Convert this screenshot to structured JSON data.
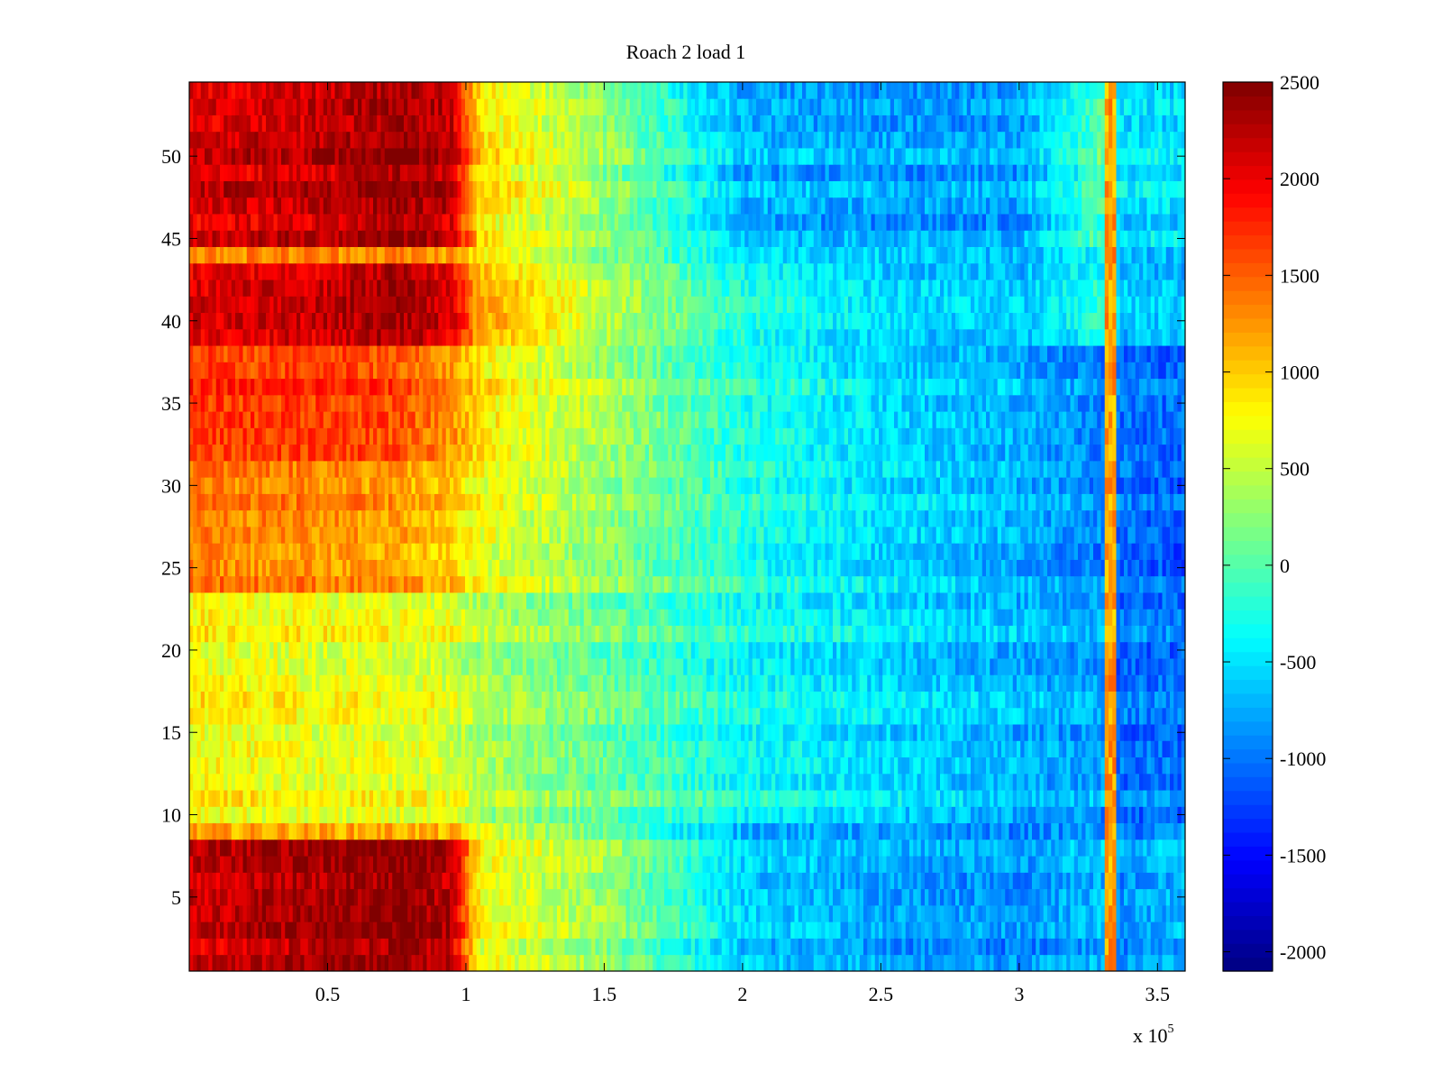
{
  "chart_data": {
    "type": "heatmap",
    "title": "Roach 2 load 1",
    "xlabel": "",
    "ylabel": "",
    "x_multiplier_label": {
      "base": "x 10",
      "exponent": "5"
    },
    "xlim": [
      0,
      3.6
    ],
    "ylim": [
      0.5,
      54.5
    ],
    "x_ticks": [
      0.5,
      1,
      1.5,
      2,
      2.5,
      3,
      3.5
    ],
    "x_tick_labels": [
      "0.5",
      "1",
      "1.5",
      "2",
      "2.5",
      "3",
      "3.5"
    ],
    "y_ticks": [
      5,
      10,
      15,
      20,
      25,
      30,
      35,
      40,
      45,
      50
    ],
    "y_tick_labels": [
      "5",
      "10",
      "15",
      "20",
      "25",
      "30",
      "35",
      "40",
      "45",
      "50"
    ],
    "colorbar": {
      "colormap": "jet",
      "clim": [
        -2100,
        2500
      ],
      "ticks": [
        2500,
        2000,
        1500,
        1000,
        500,
        0,
        -500,
        -1000,
        -1500,
        -2000
      ],
      "tick_labels": [
        "2500",
        "2000",
        "1500",
        "1000",
        "500",
        "0",
        "-500",
        "-1000",
        "-1500",
        "-2000"
      ]
    },
    "rows": 54,
    "x_profile_points": [
      0,
      0.5,
      0.75,
      0.95,
      1.05,
      1.5,
      2.0,
      2.5,
      3.0,
      3.3,
      3.35,
      3.6
    ],
    "row_band_profiles": [
      {
        "rows": [
          1,
          8
        ],
        "values": [
          2100,
          2300,
          2400,
          2200,
          700,
          300,
          -600,
          -800,
          -900,
          -700,
          -900,
          -700
        ]
      },
      {
        "rows": [
          9,
          9
        ],
        "values": [
          1300,
          1300,
          1300,
          1200,
          800,
          200,
          -600,
          -700,
          -800,
          -700,
          -900,
          -700
        ]
      },
      {
        "rows": [
          10,
          23
        ],
        "values": [
          800,
          700,
          700,
          600,
          400,
          100,
          -300,
          -500,
          -700,
          -800,
          -1000,
          -1000
        ]
      },
      {
        "rows": [
          24,
          31
        ],
        "values": [
          1400,
          1300,
          1200,
          1000,
          700,
          300,
          -200,
          -500,
          -700,
          -900,
          -1000,
          -1100
        ]
      },
      {
        "rows": [
          32,
          38
        ],
        "values": [
          1700,
          1700,
          1600,
          1300,
          900,
          400,
          -200,
          -500,
          -700,
          -900,
          -1000,
          -1000
        ]
      },
      {
        "rows": [
          39,
          43
        ],
        "values": [
          2000,
          2100,
          2300,
          2000,
          1100,
          400,
          -300,
          -600,
          -700,
          -300,
          -700,
          -700
        ]
      },
      {
        "rows": [
          44,
          44
        ],
        "values": [
          1400,
          1400,
          1400,
          1300,
          900,
          300,
          -400,
          -500,
          -600,
          -300,
          -600,
          -600
        ]
      },
      {
        "rows": [
          45,
          54
        ],
        "values": [
          2100,
          2200,
          2400,
          2200,
          900,
          300,
          -700,
          -800,
          -800,
          0,
          -500,
          -500
        ]
      }
    ],
    "vertical_streak": {
      "x": 3.33,
      "value": 1500
    }
  }
}
